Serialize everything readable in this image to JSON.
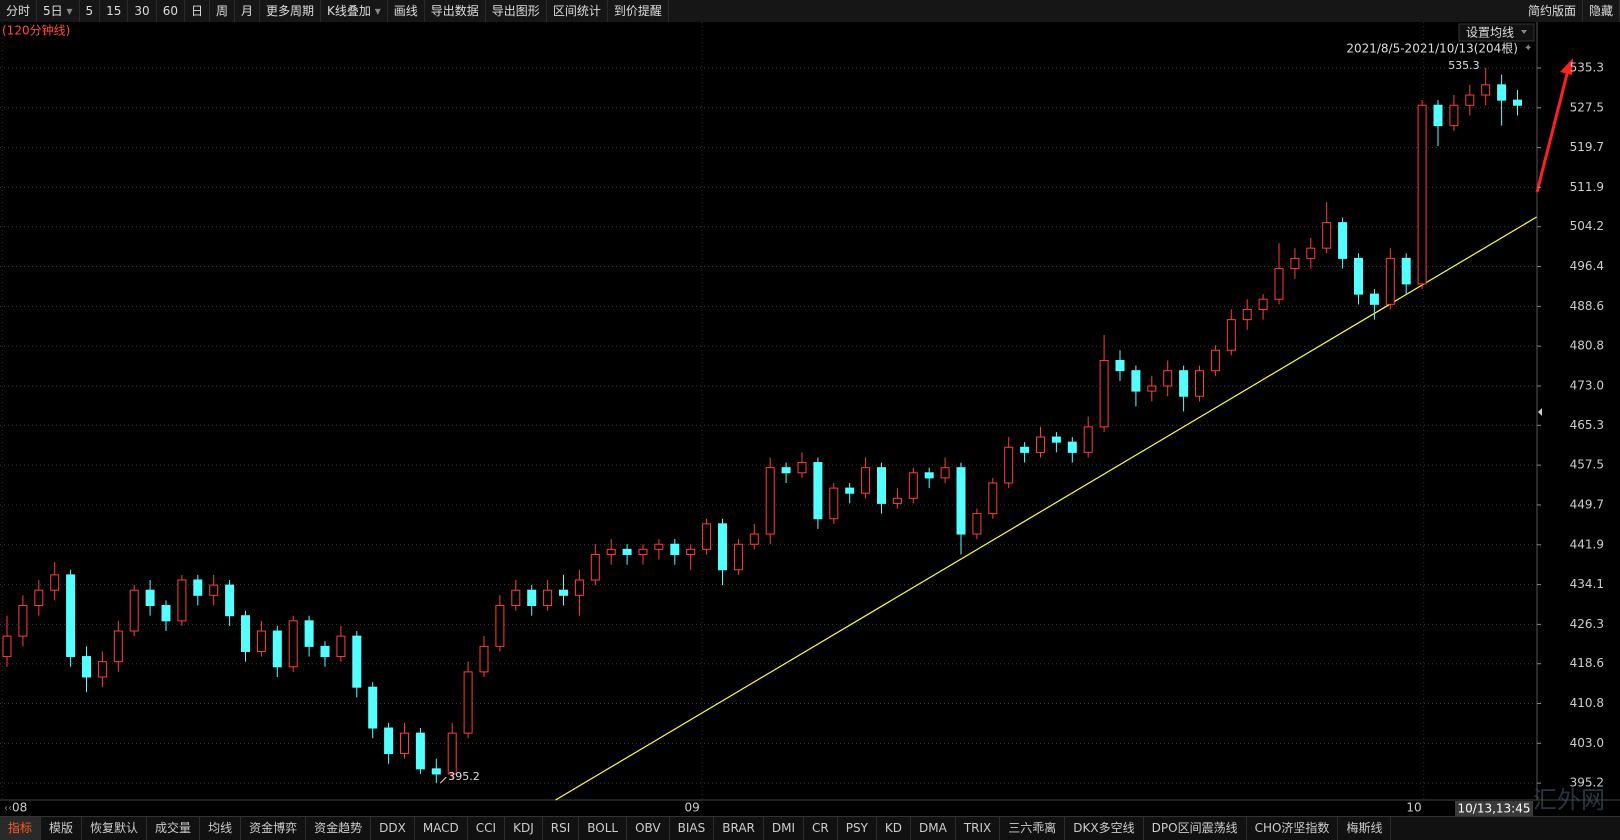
{
  "toolbar": {
    "left": [
      "分时",
      "5日",
      "5",
      "15",
      "30",
      "60",
      "日",
      "周",
      "月",
      "更多周期",
      "K线叠加",
      "画线",
      "导出数据",
      "导出图形",
      "区间统计",
      "到价提醒"
    ],
    "right": [
      "简约版面",
      "隐藏"
    ]
  },
  "chart_data": {
    "type": "candlestick",
    "subtitle": "(120分钟线)",
    "ma_button": "设置均线",
    "range_label": "2021/8/5-2021/10/13(204根)",
    "cursor_time": "10/13,13:45",
    "watermark": "汇外网",
    "up_color": "#ff3c3c",
    "down_color": "#54ffff",
    "grid": true,
    "ylim": [
      391.9,
      539.8
    ],
    "yticks": [
      535.3,
      527.5,
      519.7,
      511.9,
      504.2,
      496.4,
      488.6,
      480.8,
      {
        "value": 473,
        "label": "473.0"
      },
      465.3,
      457.5,
      449.7,
      441.9,
      434.1,
      426.3,
      418.6,
      410.8,
      {
        "value": 403,
        "label": "403.0"
      },
      395.2
    ],
    "xticks": [
      {
        "value": -0.3,
        "label": "08"
      },
      {
        "value": 43.7,
        "label": "09"
      },
      {
        "value": 89.1,
        "label": "10"
      }
    ],
    "high_index": 93,
    "low_index": 27,
    "trendline": {
      "color": "#ffff33",
      "points": [
        [
          34.5,
          391.9
        ],
        [
          96.2,
          506.1
        ]
      ]
    },
    "series": [
      {
        "name": "K线",
        "values": [
          [
            420,
            428,
            418,
            424
          ],
          [
            424,
            432,
            422,
            430
          ],
          [
            430,
            435,
            428,
            433
          ],
          [
            433,
            438.5,
            431,
            436
          ],
          [
            436,
            437,
            418,
            420
          ],
          [
            420,
            422,
            413,
            416
          ],
          [
            416,
            421,
            414,
            419
          ],
          [
            419,
            427,
            417,
            425
          ],
          [
            425,
            434,
            424,
            433
          ],
          [
            433,
            435,
            428,
            430
          ],
          [
            430,
            431,
            425,
            427
          ],
          [
            427,
            436,
            426,
            435
          ],
          [
            435,
            436,
            430,
            432
          ],
          [
            432,
            436,
            430,
            434
          ],
          [
            434,
            435,
            426,
            428
          ],
          [
            428,
            429,
            419,
            421
          ],
          [
            421,
            427,
            420,
            425
          ],
          [
            425,
            426,
            416,
            418
          ],
          [
            418,
            428,
            417,
            427
          ],
          [
            427,
            428,
            420,
            422
          ],
          [
            422,
            423,
            418,
            420
          ],
          [
            420,
            426,
            419,
            424
          ],
          [
            424,
            425,
            412,
            414
          ],
          [
            414,
            415,
            404,
            406
          ],
          [
            406,
            407,
            399,
            401
          ],
          [
            401,
            407,
            400,
            405
          ],
          [
            405,
            406,
            397,
            398
          ],
          [
            398,
            400,
            395.2,
            397
          ],
          [
            397,
            407,
            396,
            405
          ],
          [
            405,
            419,
            404,
            417
          ],
          [
            417,
            424,
            416,
            422
          ],
          [
            422,
            432,
            421,
            430
          ],
          [
            430,
            435,
            429,
            433
          ],
          [
            433,
            434,
            428,
            430
          ],
          [
            430,
            435,
            429,
            433
          ],
          [
            433,
            436,
            430,
            432
          ],
          [
            432,
            437,
            428,
            435
          ],
          [
            435,
            442,
            434,
            440
          ],
          [
            440,
            443,
            438,
            441
          ],
          [
            441,
            442,
            438,
            440
          ],
          [
            440,
            442,
            438,
            441
          ],
          [
            441,
            443,
            439,
            442
          ],
          [
            442,
            443,
            438,
            440
          ],
          [
            440,
            442,
            437,
            441
          ],
          [
            441,
            447,
            440,
            446
          ],
          [
            446,
            447,
            434,
            437
          ],
          [
            437,
            443,
            436,
            442
          ],
          [
            442,
            446,
            441,
            444
          ],
          [
            444,
            459,
            442,
            457
          ],
          [
            457,
            458,
            454,
            456
          ],
          [
            456,
            460,
            455,
            458
          ],
          [
            458,
            459,
            445,
            447
          ],
          [
            447,
            454,
            446,
            453
          ],
          [
            453,
            454,
            450,
            452
          ],
          [
            452,
            459,
            451,
            457
          ],
          [
            457,
            458,
            448,
            450
          ],
          [
            450,
            453,
            449,
            451
          ],
          [
            451,
            457,
            450,
            456
          ],
          [
            456,
            457,
            453,
            455
          ],
          [
            455,
            459,
            454,
            457
          ],
          [
            457,
            458,
            440,
            444
          ],
          [
            444,
            449,
            443,
            448
          ],
          [
            448,
            455,
            447,
            454
          ],
          [
            454,
            463,
            453,
            461
          ],
          [
            461,
            462,
            458,
            460
          ],
          [
            460,
            465,
            459,
            463
          ],
          [
            463,
            464,
            460,
            462
          ],
          [
            462,
            463,
            458,
            460
          ],
          [
            460,
            467,
            459,
            465
          ],
          [
            465,
            483,
            464,
            478
          ],
          [
            478,
            480,
            474,
            476
          ],
          [
            476,
            477,
            469,
            472
          ],
          [
            472,
            475,
            470,
            473
          ],
          [
            473,
            478,
            471,
            476
          ],
          [
            476,
            477,
            468,
            471
          ],
          [
            471,
            477,
            470,
            476
          ],
          [
            476,
            481,
            475,
            480
          ],
          [
            480,
            488,
            479,
            486
          ],
          [
            486,
            490,
            484,
            488
          ],
          [
            488,
            491,
            486,
            490
          ],
          [
            490,
            501,
            489,
            496
          ],
          [
            496,
            500,
            494,
            498
          ],
          [
            498,
            502,
            496,
            500
          ],
          [
            500,
            509,
            499,
            505
          ],
          [
            505,
            506,
            496,
            498
          ],
          [
            498,
            499,
            489,
            491
          ],
          [
            491,
            492,
            486,
            489
          ],
          [
            489,
            500,
            488,
            498
          ],
          [
            498,
            499,
            491,
            493
          ],
          [
            493,
            529,
            492,
            528
          ],
          [
            528,
            529,
            520,
            524
          ],
          [
            524,
            530,
            523,
            528
          ],
          [
            528,
            532,
            526,
            530
          ],
          [
            530,
            535.3,
            528,
            532
          ],
          [
            532,
            534,
            524,
            529
          ],
          [
            529,
            531,
            526,
            528
          ]
        ]
      }
    ]
  },
  "tabs": [
    "指标",
    "模版",
    "恢复默认",
    "成交量",
    "均线",
    "资金博弈",
    "资金趋势",
    "DDX",
    "MACD",
    "CCI",
    "KDJ",
    "RSI",
    "BOLL",
    "OBV",
    "BIAS",
    "BRAR",
    "DMI",
    "CR",
    "PSY",
    "KD",
    "DMA",
    "TRIX",
    "三六乖离",
    "DKX多空线",
    "DPO区间震荡线",
    "CHO济坚指数",
    "梅斯线"
  ]
}
